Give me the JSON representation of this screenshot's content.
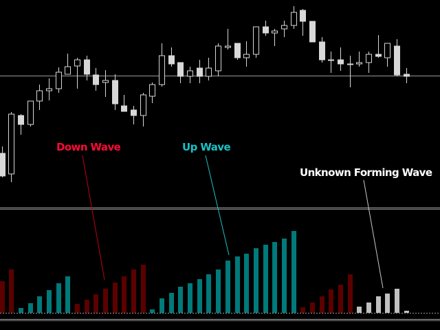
{
  "colors": {
    "background": "#000000",
    "bull_body": "#000000",
    "bear_body": "#d8d8d8",
    "candle_outline": "#d8d8d8",
    "down_wave": "#5c0000",
    "up_wave": "#007a7a",
    "forming_wave": "#c0c0c0",
    "down_label": "#ff0a37",
    "up_label": "#19c2c8",
    "forming_label": "#ffffff",
    "level_line": "#9a9a9a",
    "separator": "#a0a0a0"
  },
  "labels": {
    "down_wave": "Down Wave",
    "up_wave": "Up Wave",
    "unknown_wave": "Unknown Forming Wave"
  },
  "chart_data": [
    {
      "type": "candlestick",
      "fields": [
        "open",
        "high",
        "low",
        "close"
      ],
      "horizontal_level": 190,
      "candles": [
        [
          77,
          87,
          42,
          44
        ],
        [
          47,
          137,
          35,
          134
        ],
        [
          132,
          134,
          104,
          119
        ],
        [
          119,
          153,
          116,
          153
        ],
        [
          153,
          177,
          140,
          168
        ],
        [
          168,
          186,
          154,
          171
        ],
        [
          171,
          202,
          165,
          195
        ],
        [
          192,
          222,
          192,
          203
        ],
        [
          204,
          216,
          171,
          213
        ],
        [
          213,
          219,
          183,
          192
        ],
        [
          191,
          201,
          168,
          177
        ],
        [
          180,
          198,
          159,
          183
        ],
        [
          183,
          192,
          140,
          149
        ],
        [
          146,
          162,
          138,
          138
        ],
        [
          140,
          146,
          119,
          132
        ],
        [
          132,
          165,
          116,
          162
        ],
        [
          160,
          180,
          150,
          177
        ],
        [
          177,
          237,
          174,
          219
        ],
        [
          219,
          231,
          203,
          207
        ],
        [
          209,
          209,
          179,
          189
        ],
        [
          189,
          203,
          179,
          197
        ],
        [
          201,
          213,
          179,
          189
        ],
        [
          189,
          216,
          183,
          201
        ],
        [
          197,
          237,
          189,
          233
        ],
        [
          231,
          258,
          228,
          233
        ],
        [
          237,
          237,
          213,
          216
        ],
        [
          216,
          240,
          203,
          221
        ],
        [
          221,
          261,
          216,
          261
        ],
        [
          261,
          270,
          248,
          252
        ],
        [
          252,
          258,
          233,
          255
        ],
        [
          258,
          270,
          246,
          263
        ],
        [
          263,
          291,
          258,
          282
        ],
        [
          285,
          287,
          248,
          269
        ],
        [
          269,
          269,
          239,
          239
        ],
        [
          239,
          246,
          209,
          213
        ],
        [
          213,
          225,
          194,
          213
        ],
        [
          213,
          231,
          197,
          207
        ],
        [
          207,
          219,
          173,
          207
        ],
        [
          207,
          225,
          203,
          209
        ],
        [
          209,
          225,
          194,
          221
        ],
        [
          221,
          249,
          216,
          218
        ],
        [
          216,
          237,
          203,
          237
        ],
        [
          233,
          243,
          189,
          191
        ],
        [
          192,
          201,
          179,
          189
        ]
      ],
      "grid": false
    },
    {
      "type": "bar",
      "series_kinds": [
        "down",
        "up",
        "forming"
      ],
      "values": [
        46,
        63,
        7,
        14,
        24,
        33,
        43,
        53,
        13,
        19,
        27,
        35,
        44,
        53,
        63,
        70,
        5,
        21,
        29,
        38,
        43,
        49,
        56,
        63,
        76,
        82,
        86,
        94,
        99,
        103,
        108,
        119,
        8,
        15,
        24,
        34,
        41,
        56,
        9,
        15,
        24,
        28,
        35,
        3
      ],
      "kinds": [
        "down",
        "down",
        "up",
        "up",
        "up",
        "up",
        "up",
        "up",
        "down",
        "down",
        "down",
        "down",
        "down",
        "down",
        "down",
        "down",
        "up",
        "up",
        "up",
        "up",
        "up",
        "up",
        "up",
        "up",
        "up",
        "up",
        "up",
        "up",
        "up",
        "up",
        "up",
        "up",
        "down",
        "down",
        "down",
        "down",
        "down",
        "down",
        "forming",
        "forming",
        "forming",
        "forming",
        "forming",
        "forming"
      ],
      "ylim": [
        0,
        125
      ],
      "grid": false,
      "annotations": [
        "Down Wave",
        "Up Wave",
        "Unknown Forming Wave"
      ]
    }
  ]
}
